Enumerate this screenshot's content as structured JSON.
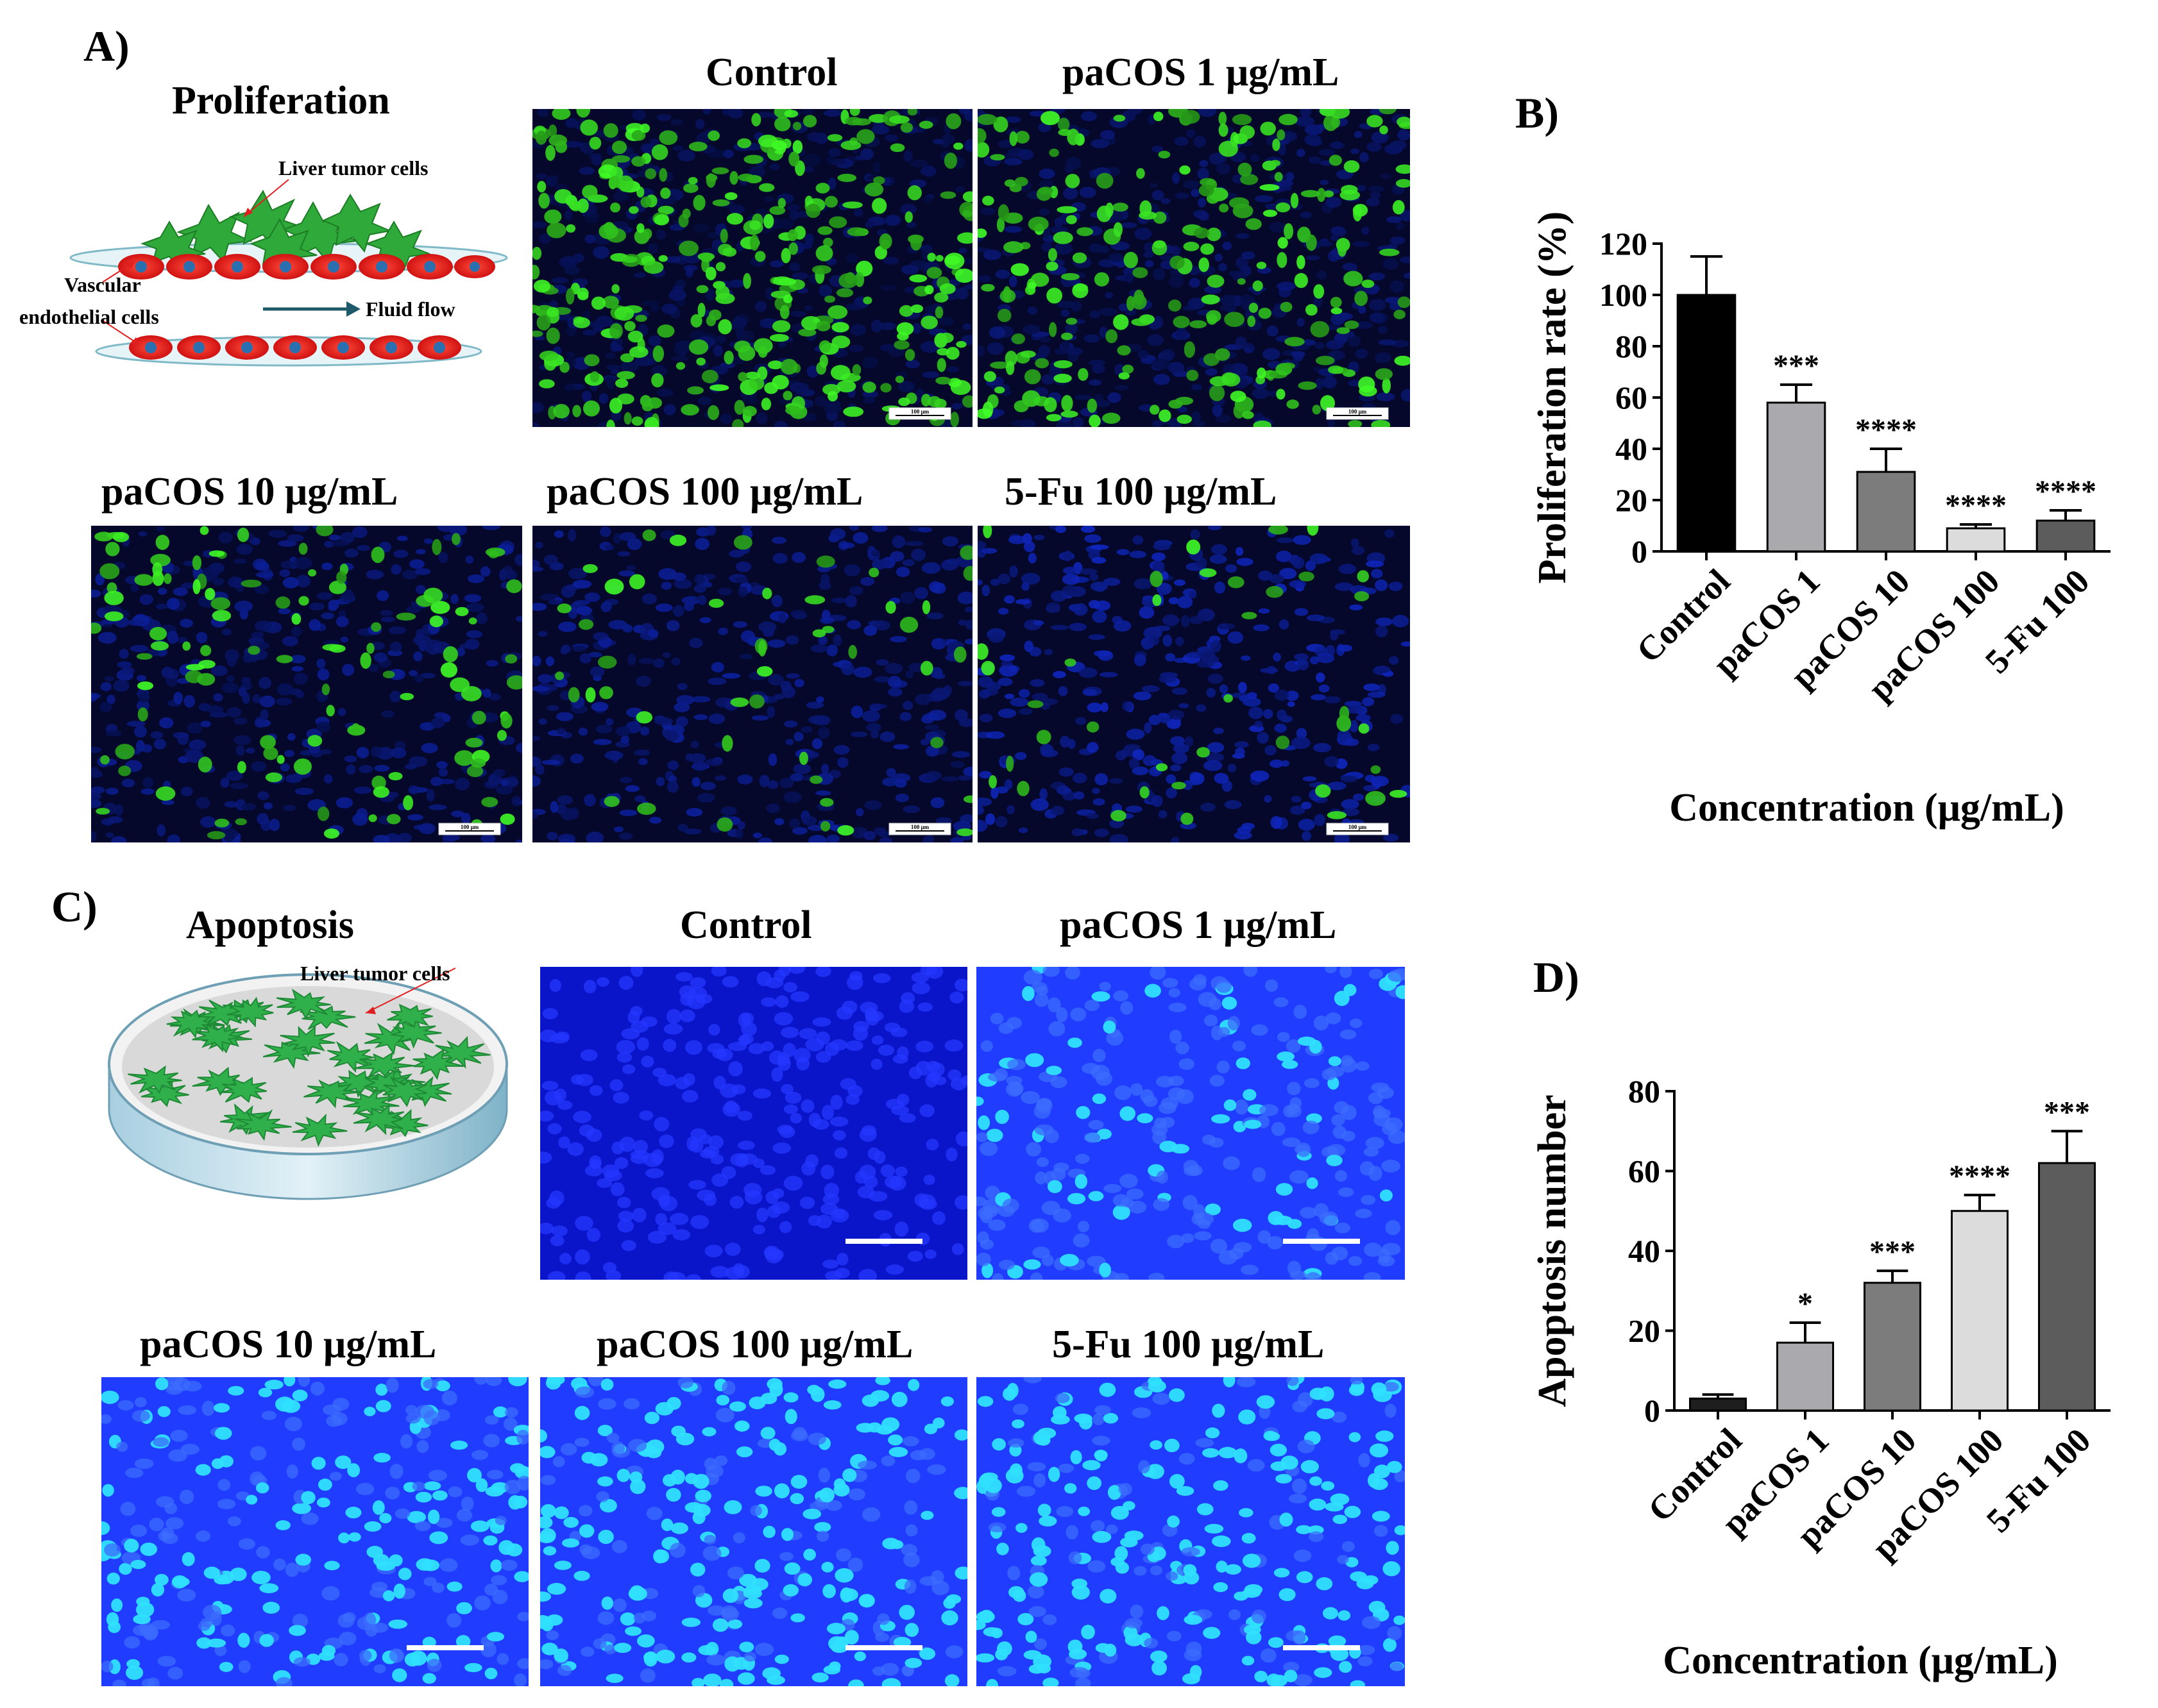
{
  "panels": {
    "A": {
      "letter": "A)",
      "title": "Proliferation"
    },
    "B": {
      "letter": "B)"
    },
    "C": {
      "letter": "C)",
      "title": "Apoptosis"
    },
    "D": {
      "letter": "D)"
    }
  },
  "schematic_a": {
    "tumor_label": "Liver tumor cells",
    "vascular_label": "Vascular",
    "endothelial_label": "endothelial cells",
    "flow_label": "Fluid flow"
  },
  "schematic_c": {
    "tumor_label": "Liver tumor cells"
  },
  "proliferation_images": [
    {
      "label": "Control",
      "scale": "100 μm",
      "green": 0.95,
      "blue": 0.45
    },
    {
      "label": "paCOS 1 μg/mL",
      "scale": "100 μm",
      "green": 0.65,
      "blue": 0.55
    },
    {
      "label": "paCOS 10 μg/mL",
      "scale": "100 μm",
      "green": 0.3,
      "blue": 0.7
    },
    {
      "label": "paCOS 100 μg/mL",
      "scale": "100 μm",
      "green": 0.12,
      "blue": 0.75
    },
    {
      "label": "5-Fu 100 μg/mL",
      "scale": "100 μm",
      "green": 0.1,
      "blue": 0.95
    }
  ],
  "apoptosis_images": [
    {
      "label": "Control",
      "bright": 0.0
    },
    {
      "label": "paCOS 1 μg/mL",
      "bright": 0.3
    },
    {
      "label": "paCOS 10 μg/mL",
      "bright": 0.45
    },
    {
      "label": "paCOS 100 μg/mL",
      "bright": 0.65
    },
    {
      "label": "5-Fu 100 μg/mL",
      "bright": 0.7
    }
  ],
  "chart_data": [
    {
      "type": "bar",
      "panel": "B",
      "categories": [
        "Control",
        "paCOS 1",
        "paCOS 10",
        "paCOS 100",
        "5-Fu 100"
      ],
      "values": [
        100,
        58,
        31,
        9,
        12
      ],
      "errors": [
        15,
        7,
        9,
        1.5,
        4
      ],
      "significance": [
        "",
        "***",
        "****",
        "****",
        "****"
      ],
      "colors": [
        "#000000",
        "#a9a9ae",
        "#7c7c7c",
        "#dcdcdc",
        "#5c5c5c"
      ],
      "ylabel": "Proliferation rate (%)",
      "xlabel": "Concentration (μg/mL)",
      "ylim": [
        0,
        120
      ],
      "yticks": [
        0,
        20,
        40,
        60,
        80,
        100,
        120
      ]
    },
    {
      "type": "bar",
      "panel": "D",
      "categories": [
        "Control",
        "paCOS 1",
        "paCOS 10",
        "paCOS 100",
        "5-Fu 100"
      ],
      "values": [
        3,
        17,
        32,
        50,
        62
      ],
      "errors": [
        1,
        5,
        3,
        4,
        8
      ],
      "significance": [
        "",
        "*",
        "***",
        "****",
        "***"
      ],
      "colors": [
        "#1e1e1e",
        "#a9a9ae",
        "#7c7c7c",
        "#dcdcdc",
        "#5c5c5c"
      ],
      "ylabel": "Apoptosis number",
      "xlabel": "Concentration (μg/mL)",
      "ylim": [
        0,
        80
      ],
      "yticks": [
        0,
        20,
        40,
        60,
        80
      ]
    }
  ]
}
